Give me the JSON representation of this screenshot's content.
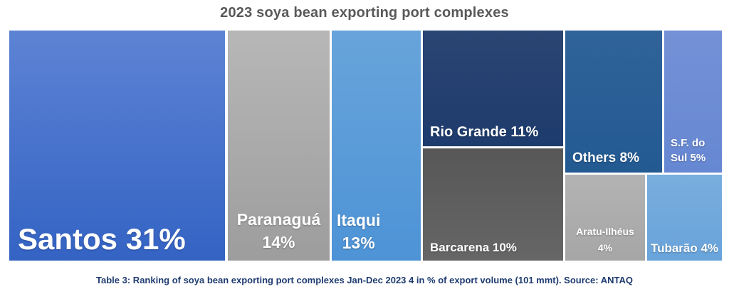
{
  "title": "2023 soya bean exporting port complexes",
  "caption": "Table 3: Ranking of soya bean exporting port complexes Jan-Dec 2023 4 in % of export volume (101 mmt). Source: ANTAQ",
  "colors": {
    "title_text": "#595959",
    "caption_text": "#1f3c70",
    "background": "#ffffff",
    "label_text": "#ffffff"
  },
  "chart_data": {
    "type": "treemap",
    "title": "2023 soya bean exporting port complexes",
    "value_unit": "% of export volume",
    "total_volume": "101 mmt",
    "source": "ANTAQ",
    "period": "Jan-Dec 2023",
    "items": [
      {
        "name": "Santos",
        "value": 31,
        "line1": "Santos 31%",
        "color_top": "#5d83d4",
        "color_bottom": "#3463c4"
      },
      {
        "name": "Paranaguá",
        "value": 14,
        "line1": "Paranaguá",
        "line2": "14%",
        "color_top": "#b7b7b7",
        "color_bottom": "#9d9d9d"
      },
      {
        "name": "Itaqui",
        "value": 13,
        "line1": "Itaqui",
        "line2": "13%",
        "color_top": "#68a4db",
        "color_bottom": "#4d93d6"
      },
      {
        "name": "Rio Grande",
        "value": 11,
        "line1": "Rio Grande 11%",
        "color_top": "#2b4573",
        "color_bottom": "#1d3b6d"
      },
      {
        "name": "Barcarena",
        "value": 10,
        "line1": "Barcarena 10%",
        "color_top": "#575757",
        "color_bottom": "#666666"
      },
      {
        "name": "Others",
        "value": 8,
        "line1": "Others 8%",
        "color_top": "#2f6399",
        "color_bottom": "#235a92"
      },
      {
        "name": "S.F. do Sul",
        "value": 5,
        "line1": "S.F. do",
        "line2": "Sul 5%",
        "color_top": "#7491d7",
        "color_bottom": "#6687d2"
      },
      {
        "name": "Aratu-Ilhéus",
        "value": 4,
        "line1": "Aratu-Ilhéus",
        "line2": "4%",
        "color_top": "#b3b3b3",
        "color_bottom": "#a6a6a6"
      },
      {
        "name": "Tubarão",
        "value": 4,
        "line1": "Tubarão 4%",
        "color_top": "#79aede",
        "color_bottom": "#68a3da"
      }
    ]
  }
}
